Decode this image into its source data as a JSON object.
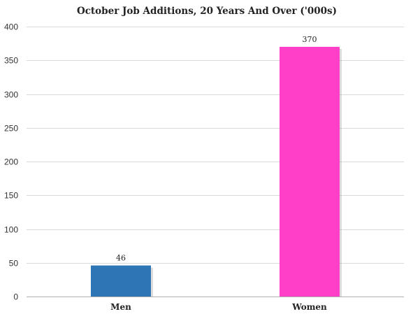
{
  "chart_data": {
    "type": "bar",
    "title": "October Job Additions, 20 Years And Over ('000s)",
    "categories": [
      "Men",
      "Women"
    ],
    "values": [
      46,
      370
    ],
    "data_labels": [
      "46",
      "370"
    ],
    "xlabel": "",
    "ylabel": "",
    "ylim": [
      0,
      400
    ],
    "yticks": [
      "0",
      "50",
      "100",
      "150",
      "200",
      "250",
      "300",
      "350",
      "400"
    ],
    "colors": [
      "#2e75b6",
      "#ff3fc8"
    ],
    "grid": true,
    "legend": "none"
  }
}
